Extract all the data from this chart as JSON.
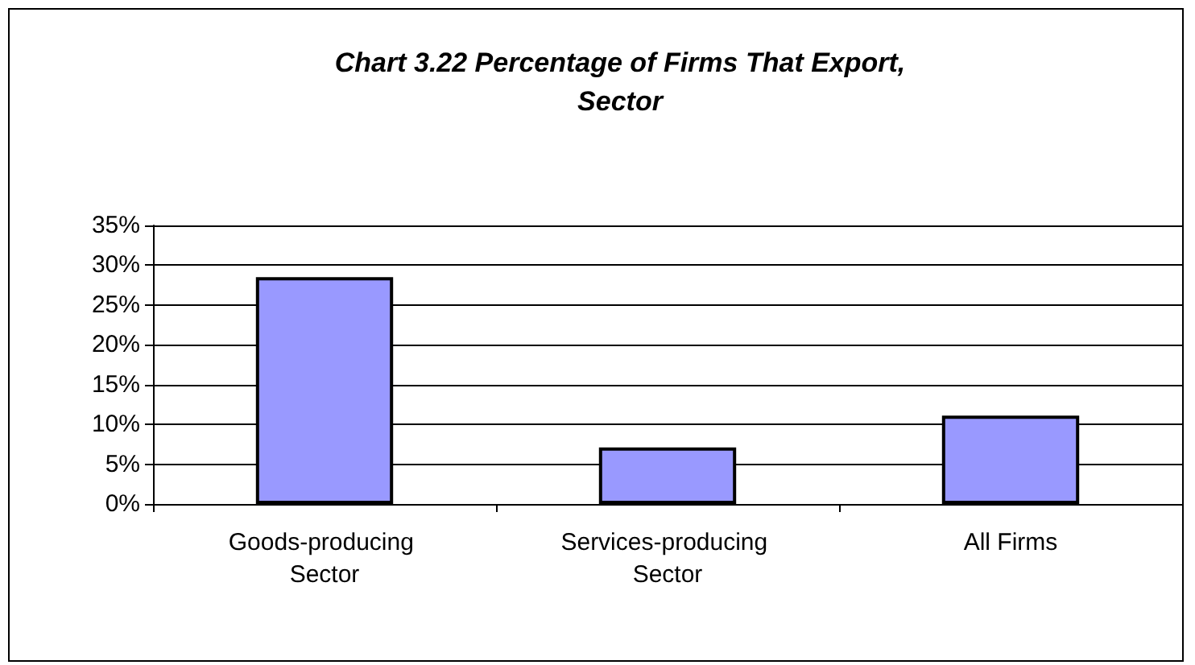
{
  "chart_data": {
    "type": "bar",
    "title": "Chart 3.22 Percentage of Firms That Export,\nSector",
    "categories": [
      "Goods-producing Sector",
      "Services-producing Sector",
      "All Firms"
    ],
    "values": [
      28.5,
      7.1,
      11.1
    ],
    "color": "#9999ff",
    "ylim": [
      0,
      35
    ],
    "yticks": [
      {
        "value": 0,
        "label": "0%"
      },
      {
        "value": 5,
        "label": "5%"
      },
      {
        "value": 10,
        "label": "10%"
      },
      {
        "value": 15,
        "label": "15%"
      },
      {
        "value": 20,
        "label": "20%"
      },
      {
        "value": 25,
        "label": "25%"
      },
      {
        "value": 30,
        "label": "30%"
      },
      {
        "value": 35,
        "label": "35%"
      }
    ],
    "grid": true
  }
}
